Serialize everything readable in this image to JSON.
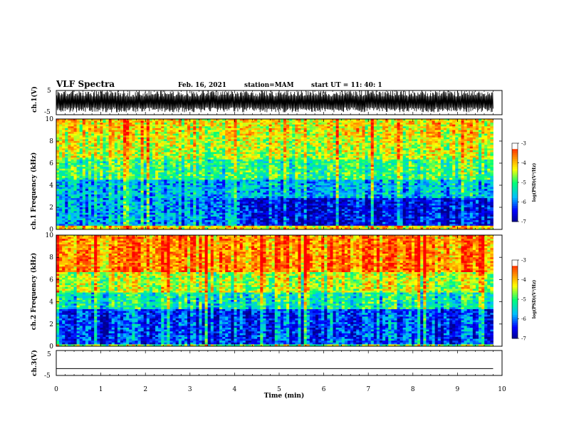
{
  "header": {
    "title": "VLF Spectra",
    "date": "Feb. 16, 2021",
    "station": "station=MAM",
    "start": "start UT =  11: 40: 1"
  },
  "chart_data": [
    {
      "type": "line",
      "name": "panel-ch1-waveform",
      "ylabel": "ch.1(V)",
      "ylim": [
        -5,
        5
      ],
      "yticks": [
        5,
        -5
      ]
    },
    {
      "type": "heatmap",
      "name": "panel-ch1-spectrogram",
      "ylabel": "ch.1 Frequency (kHz)",
      "ylim": [
        0,
        10
      ],
      "yticks": [
        10,
        8,
        6,
        4,
        2,
        0
      ],
      "colorbar": {
        "label": "log(PSD)(V²/Hz)",
        "range": [
          -7,
          -3
        ],
        "ticks": [
          -3,
          -4,
          -5,
          -6,
          -7
        ]
      }
    },
    {
      "type": "heatmap",
      "name": "panel-ch2-spectrogram",
      "ylabel": "ch.2 Frequency (kHz)",
      "ylim": [
        0,
        10
      ],
      "yticks": [
        10,
        8,
        6,
        4,
        2,
        0
      ],
      "colorbar": {
        "label": "log(PSD)(V²/Hz)",
        "range": [
          -7,
          -3
        ],
        "ticks": [
          -3,
          -4,
          -5,
          -6,
          -7
        ]
      }
    },
    {
      "type": "line",
      "name": "panel-ch3-waveform",
      "ylabel": "ch.3(V)",
      "ylim": [
        -5,
        5
      ],
      "yticks": [
        5,
        -5
      ],
      "series": [
        {
          "x": [
            0,
            9.8
          ],
          "y": [
            -2.3,
            -2.3
          ]
        }
      ]
    }
  ],
  "xaxis": {
    "label": "Time (min)",
    "ticks": [
      "0",
      "1",
      "2",
      "3",
      "4",
      "5",
      "6",
      "7",
      "8",
      "9",
      "10"
    ],
    "xlim": [
      0,
      10
    ],
    "data_end": 9.8
  },
  "colors": {
    "colormap": [
      "#00008b",
      "#0000ff",
      "#00bfff",
      "#00ff80",
      "#ffff00",
      "#ff8000",
      "#ff0000",
      "#ffffff"
    ],
    "axis": "#000000"
  }
}
